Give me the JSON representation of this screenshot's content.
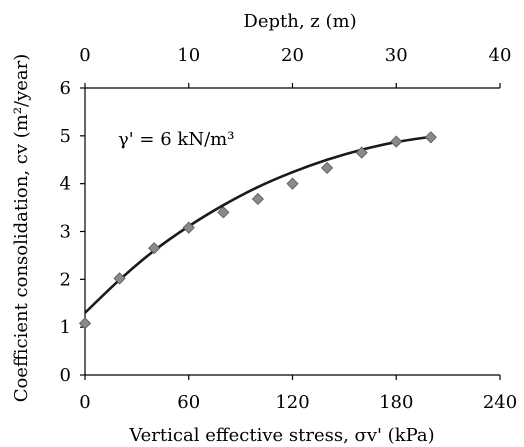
{
  "chart_data": {
    "type": "scatter",
    "xlabel": "Vertical effective stress, σv' (kPa)",
    "ylabel": "Coefficient consolidation, cv (m²/year)",
    "x2label": "Depth, z (m)",
    "xlim": [
      0,
      240
    ],
    "ylim": [
      0,
      6
    ],
    "x2lim": [
      0,
      40
    ],
    "x_ticks": [
      0,
      60,
      120,
      180,
      240
    ],
    "y_ticks": [
      0,
      1,
      2,
      3,
      4,
      5,
      6
    ],
    "x2_ticks": [
      0,
      10,
      20,
      30,
      40
    ],
    "annotation": "γ' = 6 kN/m³",
    "grid": false,
    "series": [
      {
        "kind": "points",
        "x": [
          0,
          20,
          40,
          60,
          80,
          100,
          120,
          140,
          160,
          180,
          200
        ],
        "y": [
          1.08,
          2.02,
          2.65,
          3.08,
          3.4,
          3.68,
          4.0,
          4.33,
          4.65,
          4.88,
          4.97
        ],
        "marker": "diamond",
        "color": "#8a8a8a"
      },
      {
        "kind": "fit",
        "x": [
          0,
          20,
          40,
          60,
          80,
          100,
          120,
          140,
          160,
          180,
          200
        ],
        "y": [
          1.3,
          1.99,
          2.6,
          3.11,
          3.55,
          3.93,
          4.24,
          4.5,
          4.71,
          4.87,
          4.98
        ],
        "color": "#1a1a1a"
      }
    ]
  }
}
